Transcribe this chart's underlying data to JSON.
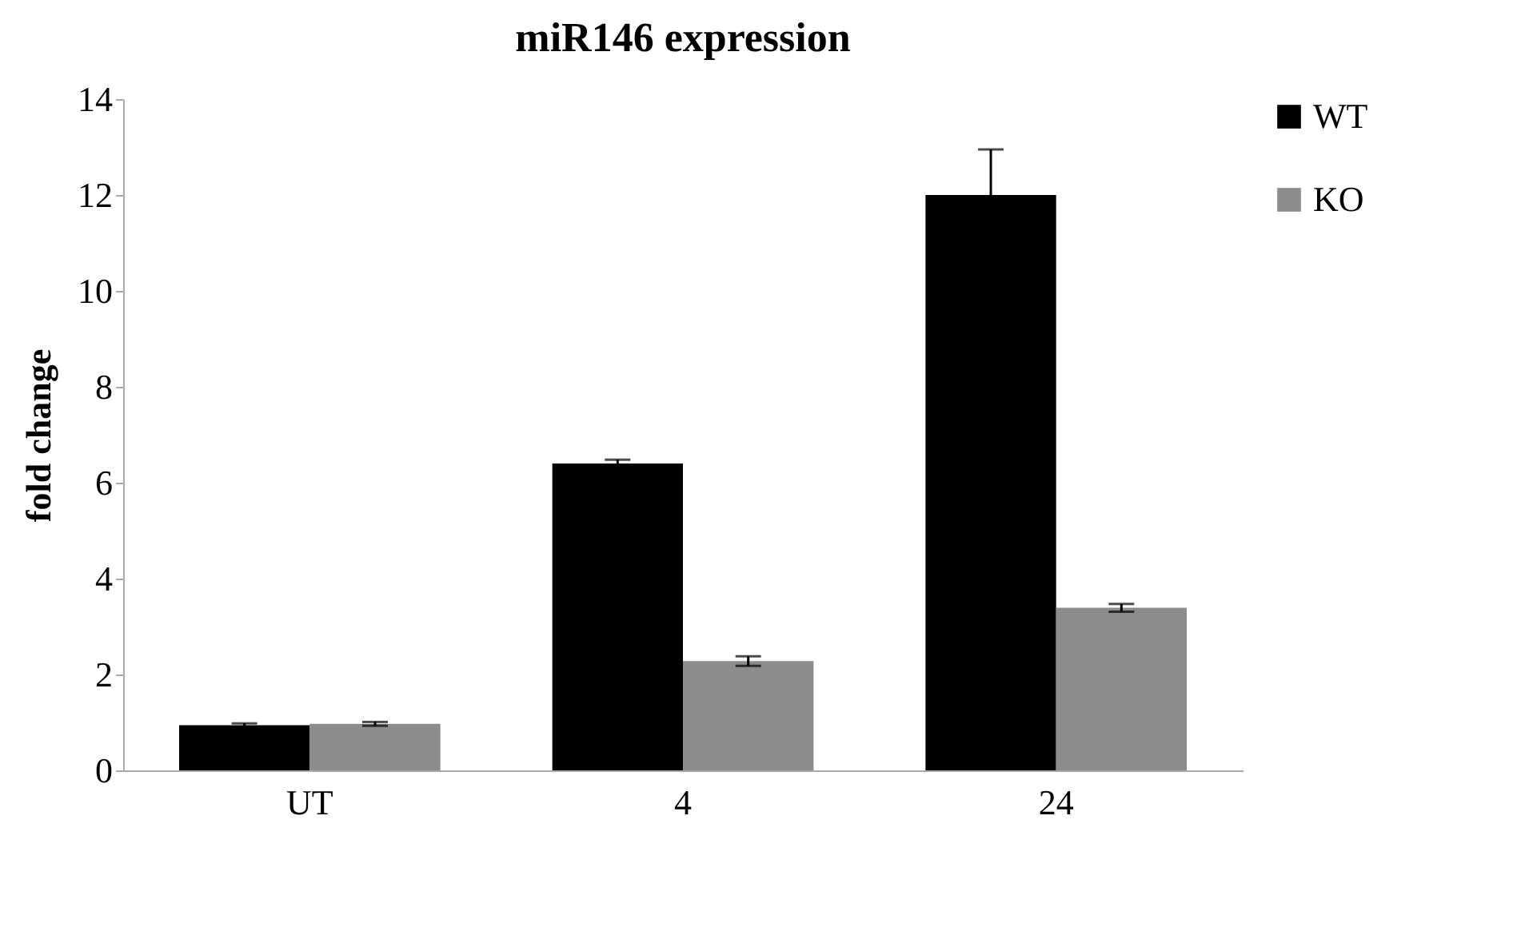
{
  "chart_data": {
    "type": "bar",
    "title": "miR146 expression",
    "ylabel": "fold change",
    "categories": [
      "UT",
      "4",
      "24"
    ],
    "series": [
      {
        "name": "WT",
        "color": "#000000",
        "values": [
          0.94,
          6.4,
          12
        ],
        "errors": [
          0.04,
          0.08,
          0.95
        ]
      },
      {
        "name": "KO",
        "color": "#8c8c8c",
        "values": [
          0.97,
          2.28,
          3.39
        ],
        "errors": [
          0.04,
          0.1,
          0.08
        ]
      }
    ],
    "ylim": [
      0,
      14
    ],
    "yticks": [
      0,
      2,
      4,
      6,
      8,
      10,
      12,
      14
    ],
    "grid": false,
    "legend": "right"
  }
}
